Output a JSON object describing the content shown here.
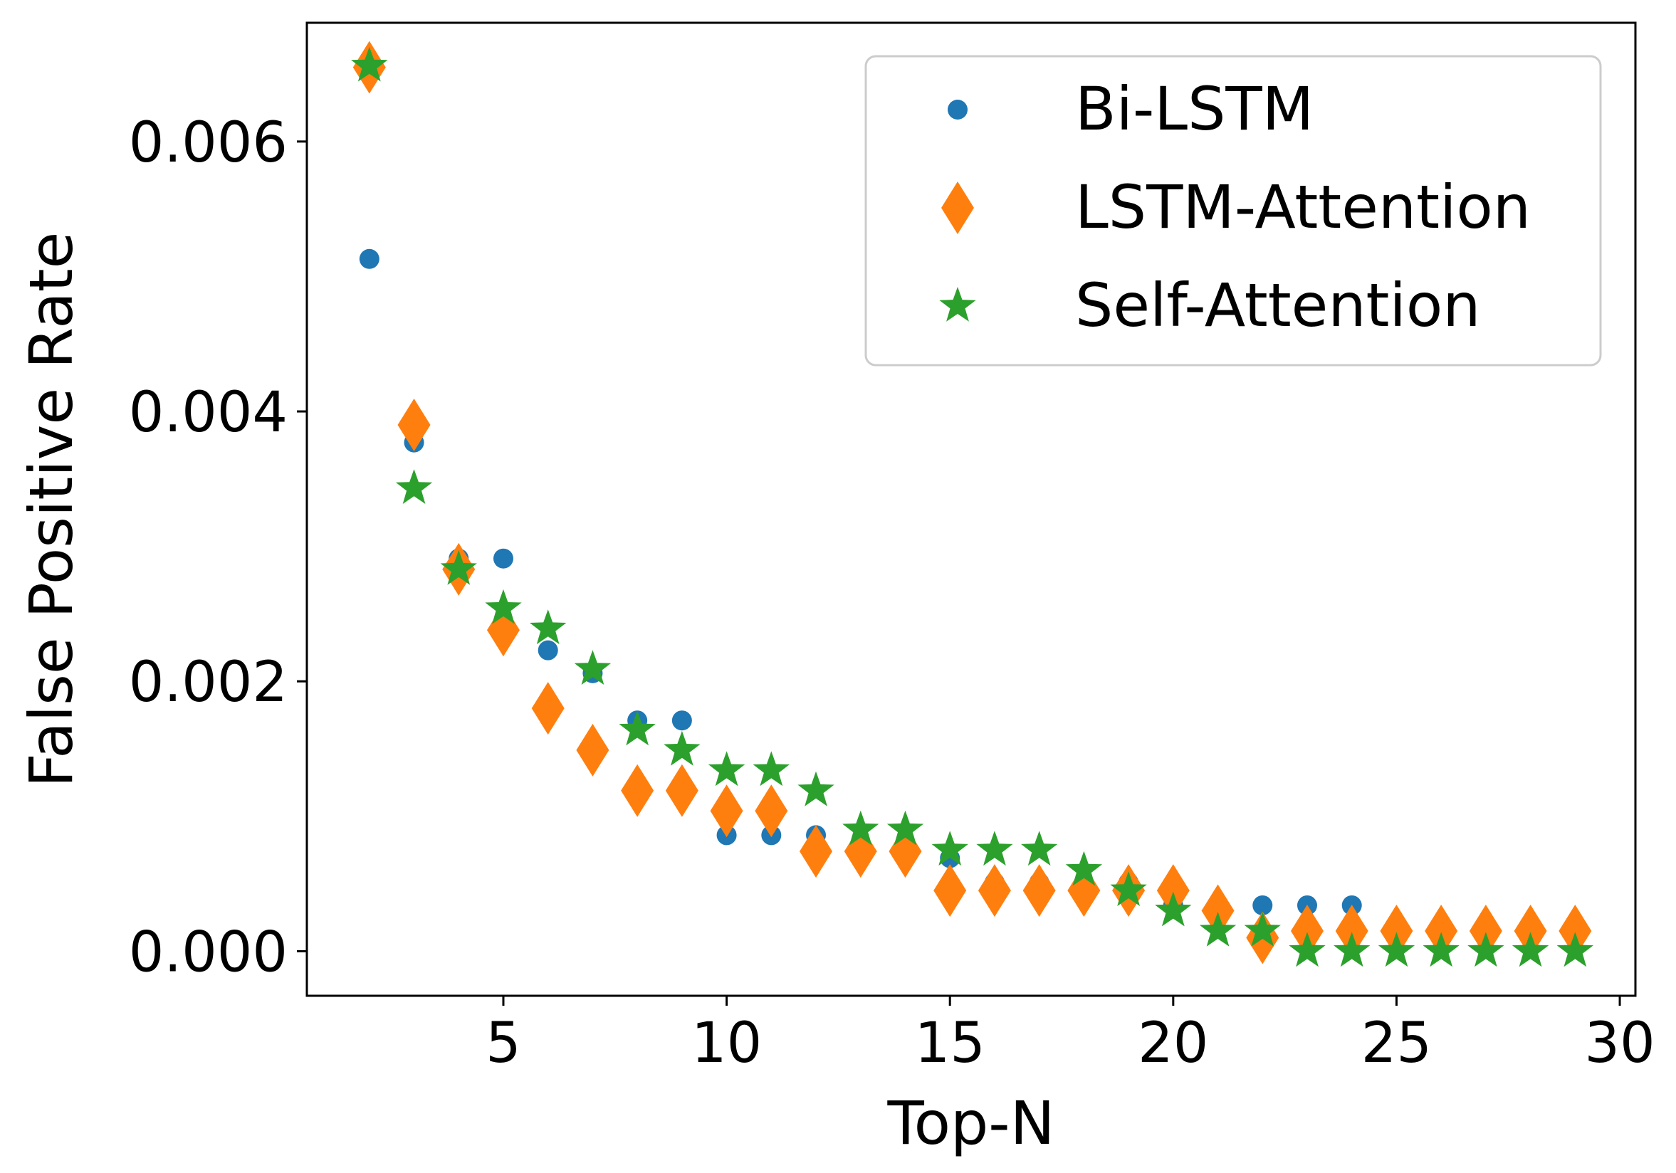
{
  "chart_data": {
    "type": "scatter",
    "title": "",
    "xlabel": "Top-N",
    "ylabel": "False Positive Rate",
    "xlim": [
      0.6,
      30.35
    ],
    "ylim": [
      -0.00033,
      0.00688
    ],
    "xticks": [
      5,
      10,
      15,
      20,
      25,
      30
    ],
    "xtick_labels": [
      "5",
      "10",
      "15",
      "20",
      "25",
      "30"
    ],
    "yticks": [
      0.0,
      0.002,
      0.004,
      0.006
    ],
    "ytick_labels": [
      "0.000",
      "0.002",
      "0.004",
      "0.006"
    ],
    "legend_position": "top-right",
    "x": [
      2,
      3,
      4,
      5,
      6,
      7,
      8,
      9,
      10,
      11,
      12,
      13,
      14,
      15,
      16,
      17,
      18,
      19,
      20,
      21,
      22,
      23,
      24,
      25,
      26,
      27,
      28,
      29
    ],
    "series": [
      {
        "name": "Bi-LSTM",
        "marker": "circle",
        "color": "#1f77b4",
        "values": [
          0.00513,
          0.00377,
          0.00291,
          0.00291,
          0.00223,
          0.00206,
          0.00171,
          0.00171,
          0.00086,
          0.00086,
          0.00086,
          0.00069,
          0.00069,
          0.00069,
          0.00051,
          0.00051,
          0.00051,
          0.00051,
          0.00034,
          0.00034,
          0.00034,
          0.00034,
          0.00034,
          0.00017,
          0.00017,
          0.00017,
          0.00017,
          0.00017
        ]
      },
      {
        "name": "LSTM-Attention",
        "marker": "diamond",
        "color": "#ff7f0e",
        "values": [
          0.00655,
          0.0039,
          0.00283,
          0.00238,
          0.0018,
          0.00149,
          0.00119,
          0.00119,
          0.00104,
          0.00104,
          0.00074,
          0.00074,
          0.00074,
          0.00045,
          0.00045,
          0.00045,
          0.00045,
          0.00045,
          0.00045,
          0.0003,
          0.0001,
          0.00015,
          0.00015,
          0.00015,
          0.00015,
          0.00015,
          0.00015,
          0.00015
        ]
      },
      {
        "name": "Self-Attention",
        "marker": "star",
        "color": "#2ca02c",
        "values": [
          0.00656,
          0.00343,
          0.00283,
          0.00254,
          0.00239,
          0.00209,
          0.00164,
          0.00149,
          0.00134,
          0.00134,
          0.00119,
          0.0009,
          0.0009,
          0.00075,
          0.00075,
          0.00075,
          0.0006,
          0.00045,
          0.0003,
          0.00015,
          0.00015,
          0.0,
          0.0,
          0.0,
          0.0,
          0.0,
          0.0,
          0.0
        ]
      }
    ]
  }
}
